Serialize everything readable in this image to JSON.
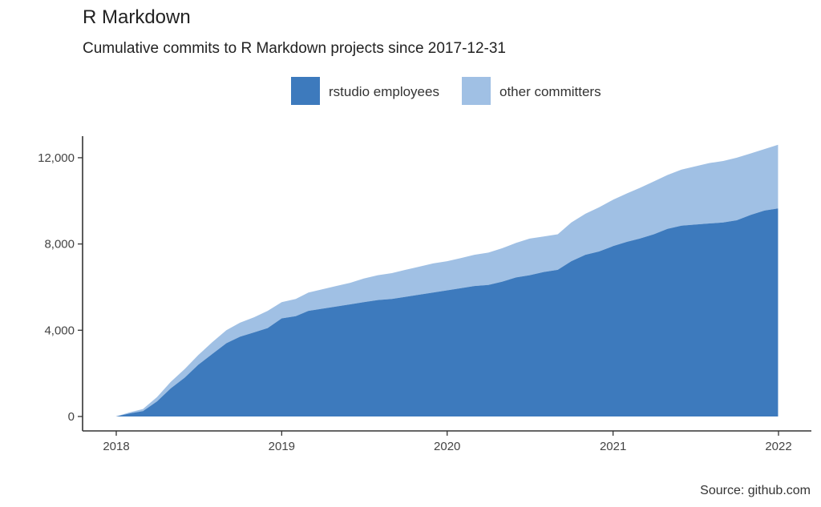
{
  "chart_data": {
    "type": "area",
    "stacked": true,
    "title": "R Markdown",
    "subtitle": "Cumulative commits to R Markdown projects since 2017-12-31",
    "caption": "Source: github.com",
    "xlabel": "",
    "ylabel": "",
    "xlim": [
      "2017-12-31",
      "2022-01-01"
    ],
    "ylim": [
      0,
      13000
    ],
    "x_ticks": [
      "2018",
      "2019",
      "2020",
      "2021",
      "2022"
    ],
    "y_ticks": [
      "0",
      "4,000",
      "8,000",
      "12,000"
    ],
    "y_tick_values": [
      0,
      4000,
      8000,
      12000
    ],
    "legend_position": "top",
    "grid": false,
    "x": [
      "2017-12-31",
      "2018-02-01",
      "2018-03-01",
      "2018-04-01",
      "2018-05-01",
      "2018-06-01",
      "2018-07-01",
      "2018-08-01",
      "2018-09-01",
      "2018-10-01",
      "2018-11-01",
      "2018-12-01",
      "2019-01-01",
      "2019-02-01",
      "2019-03-01",
      "2019-04-01",
      "2019-05-01",
      "2019-06-01",
      "2019-07-01",
      "2019-08-01",
      "2019-09-01",
      "2019-10-01",
      "2019-11-01",
      "2019-12-01",
      "2020-01-01",
      "2020-02-01",
      "2020-03-01",
      "2020-04-01",
      "2020-05-01",
      "2020-06-01",
      "2020-07-01",
      "2020-08-01",
      "2020-09-01",
      "2020-10-01",
      "2020-11-01",
      "2020-12-01",
      "2021-01-01",
      "2021-02-01",
      "2021-03-01",
      "2021-04-01",
      "2021-05-01",
      "2021-06-01",
      "2021-07-01",
      "2021-08-01",
      "2021-09-01",
      "2021-10-01",
      "2021-11-01",
      "2021-12-01",
      "2021-12-31"
    ],
    "series": [
      {
        "name": "rstudio employees",
        "color": "#3d7abd",
        "values": [
          0,
          150,
          250,
          700,
          1300,
          1800,
          2400,
          2900,
          3400,
          3700,
          3900,
          4100,
          4550,
          4650,
          4900,
          5000,
          5100,
          5200,
          5300,
          5400,
          5450,
          5550,
          5650,
          5750,
          5850,
          5950,
          6050,
          6100,
          6250,
          6450,
          6550,
          6700,
          6800,
          7200,
          7500,
          7650,
          7900,
          8100,
          8250,
          8450,
          8700,
          8850,
          8900,
          8950,
          9000,
          9100,
          9350,
          9550,
          9650
        ]
      },
      {
        "name": "other committers",
        "color": "#a0c0e4",
        "values": [
          0,
          50,
          100,
          200,
          300,
          400,
          450,
          550,
          600,
          650,
          700,
          800,
          750,
          800,
          850,
          900,
          950,
          1000,
          1100,
          1150,
          1200,
          1250,
          1300,
          1350,
          1350,
          1400,
          1450,
          1500,
          1550,
          1600,
          1700,
          1650,
          1650,
          1800,
          1900,
          2050,
          2150,
          2250,
          2350,
          2450,
          2500,
          2600,
          2700,
          2800,
          2850,
          2900,
          2850,
          2850,
          2950
        ]
      }
    ]
  }
}
